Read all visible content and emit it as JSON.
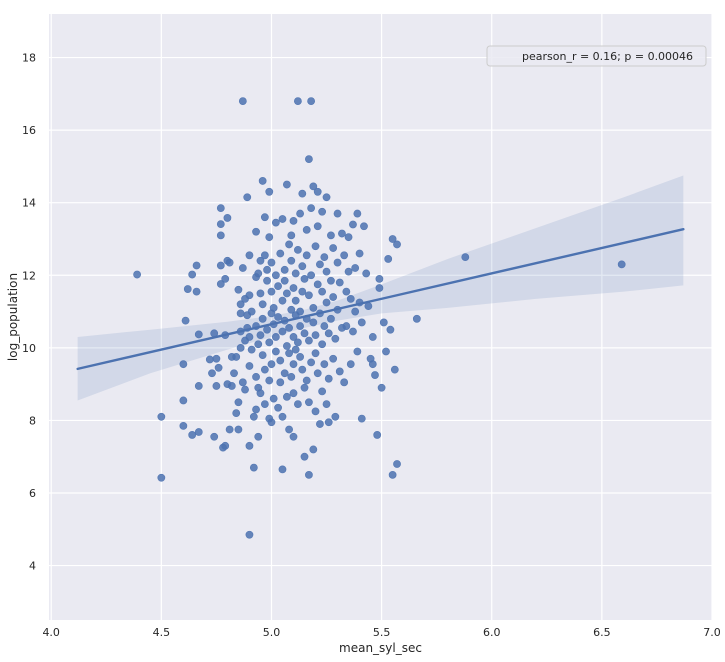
{
  "chart_data": {
    "type": "scatter",
    "title": "",
    "xlabel": "mean_syl_sec",
    "ylabel": "log_population",
    "xlim": [
      3.99,
      7.0
    ],
    "ylim": [
      2.5,
      19.2
    ],
    "xticks": [
      4.0,
      4.5,
      5.0,
      5.5,
      6.0,
      6.5,
      7.0
    ],
    "xtick_labels": [
      "4.0",
      "4.5",
      "5.0",
      "5.5",
      "6.0",
      "6.5",
      "7.0"
    ],
    "yticks": [
      4,
      6,
      8,
      10,
      12,
      14,
      16,
      18
    ],
    "ytick_labels": [
      "4",
      "6",
      "8",
      "10",
      "12",
      "14",
      "16",
      "18"
    ],
    "grid": true,
    "background": "#eaeaf2",
    "colors": {
      "points": "#4c72b0",
      "line": "#4c72b0",
      "band": "#4c72b0"
    },
    "legend": {
      "placement": "top-right",
      "entries": [
        "pearson_r = 0.16; p = 0.00046"
      ]
    },
    "regression": {
      "x": [
        4.12,
        6.87
      ],
      "y": [
        9.42,
        13.27
      ],
      "ci_upper": [
        [
          4.12,
          10.3
        ],
        [
          4.45,
          10.5
        ],
        [
          4.8,
          10.72
        ],
        [
          5.0,
          10.88
        ],
        [
          5.15,
          11.05
        ],
        [
          5.3,
          11.3
        ],
        [
          5.5,
          11.75
        ],
        [
          5.8,
          12.45
        ],
        [
          6.2,
          13.3
        ],
        [
          6.6,
          14.15
        ],
        [
          6.87,
          14.75
        ]
      ],
      "ci_lower": [
        [
          4.12,
          8.55
        ],
        [
          4.45,
          9.3
        ],
        [
          4.8,
          9.95
        ],
        [
          5.0,
          10.3
        ],
        [
          5.15,
          10.55
        ],
        [
          5.3,
          10.75
        ],
        [
          5.5,
          10.95
        ],
        [
          5.8,
          11.1
        ],
        [
          6.2,
          11.35
        ],
        [
          6.6,
          11.55
        ],
        [
          6.87,
          11.72
        ]
      ]
    },
    "points": [
      [
        4.39,
        12.02
      ],
      [
        4.5,
        6.42
      ],
      [
        4.5,
        8.1
      ],
      [
        4.6,
        7.85
      ],
      [
        4.6,
        8.55
      ],
      [
        4.6,
        9.55
      ],
      [
        4.61,
        10.75
      ],
      [
        4.62,
        11.62
      ],
      [
        4.64,
        12.02
      ],
      [
        4.64,
        7.6
      ],
      [
        4.66,
        11.55
      ],
      [
        4.66,
        12.27
      ],
      [
        4.67,
        7.68
      ],
      [
        4.67,
        8.95
      ],
      [
        4.67,
        10.37
      ],
      [
        4.72,
        9.68
      ],
      [
        4.73,
        9.3
      ],
      [
        4.74,
        10.4
      ],
      [
        4.74,
        7.55
      ],
      [
        4.75,
        8.95
      ],
      [
        4.75,
        9.7
      ],
      [
        4.76,
        9.45
      ],
      [
        4.77,
        11.76
      ],
      [
        4.77,
        13.1
      ],
      [
        4.77,
        13.41
      ],
      [
        4.77,
        13.85
      ],
      [
        4.77,
        12.27
      ],
      [
        4.78,
        7.25
      ],
      [
        4.79,
        10.35
      ],
      [
        4.79,
        11.9
      ],
      [
        4.79,
        7.3
      ],
      [
        4.8,
        9.0
      ],
      [
        4.8,
        12.4
      ],
      [
        4.8,
        13.58
      ],
      [
        4.81,
        12.35
      ],
      [
        4.81,
        7.75
      ],
      [
        4.82,
        8.95
      ],
      [
        4.82,
        9.75
      ],
      [
        4.83,
        9.3
      ],
      [
        4.84,
        8.2
      ],
      [
        4.84,
        9.75
      ],
      [
        4.85,
        11.6
      ],
      [
        4.85,
        8.5
      ],
      [
        4.85,
        7.75
      ],
      [
        4.86,
        10.0
      ],
      [
        4.86,
        11.2
      ],
      [
        4.86,
        10.45
      ],
      [
        4.86,
        10.95
      ],
      [
        4.87,
        16.8
      ],
      [
        4.87,
        12.2
      ],
      [
        4.87,
        9.05
      ],
      [
        4.88,
        10.2
      ],
      [
        4.88,
        8.85
      ],
      [
        4.88,
        11.35
      ],
      [
        4.89,
        10.55
      ],
      [
        4.89,
        14.15
      ],
      [
        4.89,
        10.9
      ],
      [
        4.9,
        12.55
      ],
      [
        4.9,
        9.5
      ],
      [
        4.9,
        7.3
      ],
      [
        4.9,
        11.45
      ],
      [
        4.9,
        10.3
      ],
      [
        4.9,
        4.85
      ],
      [
        4.91,
        11.0
      ],
      [
        4.91,
        9.95
      ],
      [
        4.92,
        6.7
      ],
      [
        4.92,
        8.1
      ],
      [
        4.93,
        11.95
      ],
      [
        4.93,
        9.2
      ],
      [
        4.93,
        10.6
      ],
      [
        4.93,
        8.3
      ],
      [
        4.93,
        13.2
      ],
      [
        4.94,
        12.05
      ],
      [
        4.94,
        10.1
      ],
      [
        4.94,
        8.9
      ],
      [
        4.94,
        7.55
      ],
      [
        4.95,
        8.75
      ],
      [
        4.95,
        11.5
      ],
      [
        4.95,
        10.35
      ],
      [
        4.95,
        12.4
      ],
      [
        4.96,
        14.6
      ],
      [
        4.96,
        9.8
      ],
      [
        4.96,
        11.2
      ],
      [
        4.96,
        10.8
      ],
      [
        4.97,
        12.55
      ],
      [
        4.97,
        13.6
      ],
      [
        4.97,
        9.4
      ],
      [
        4.97,
        8.45
      ],
      [
        4.98,
        10.5
      ],
      [
        4.98,
        11.85
      ],
      [
        4.98,
        12.15
      ],
      [
        4.99,
        10.15
      ],
      [
        4.99,
        9.1
      ],
      [
        4.99,
        13.05
      ],
      [
        4.99,
        8.05
      ],
      [
        4.99,
        14.3
      ],
      [
        5.0,
        11.55
      ],
      [
        5.0,
        10.95
      ],
      [
        5.0,
        12.35
      ],
      [
        5.0,
        7.95
      ],
      [
        5.0,
        9.55
      ],
      [
        5.01,
        10.65
      ],
      [
        5.01,
        11.1
      ],
      [
        5.01,
        8.6
      ],
      [
        5.02,
        9.9
      ],
      [
        5.02,
        13.45
      ],
      [
        5.02,
        12.0
      ],
      [
        5.02,
        10.3
      ],
      [
        5.03,
        11.7
      ],
      [
        5.03,
        8.35
      ],
      [
        5.03,
        10.85
      ],
      [
        5.04,
        9.05
      ],
      [
        5.04,
        12.6
      ],
      [
        5.04,
        9.65
      ],
      [
        5.05,
        11.3
      ],
      [
        5.05,
        10.45
      ],
      [
        5.05,
        13.55
      ],
      [
        5.05,
        8.1
      ],
      [
        5.05,
        6.65
      ],
      [
        5.06,
        12.15
      ],
      [
        5.06,
        10.75
      ],
      [
        5.06,
        9.3
      ],
      [
        5.06,
        11.85
      ],
      [
        5.07,
        14.5
      ],
      [
        5.07,
        10.05
      ],
      [
        5.07,
        8.65
      ],
      [
        5.07,
        11.5
      ],
      [
        5.08,
        12.85
      ],
      [
        5.08,
        9.85
      ],
      [
        5.08,
        10.55
      ],
      [
        5.08,
        7.75
      ],
      [
        5.09,
        11.05
      ],
      [
        5.09,
        13.1
      ],
      [
        5.09,
        9.2
      ],
      [
        5.09,
        12.4
      ],
      [
        5.1,
        10.3
      ],
      [
        5.1,
        11.65
      ],
      [
        5.1,
        8.75
      ],
      [
        5.1,
        7.55
      ],
      [
        5.1,
        13.5
      ],
      [
        5.1,
        9.55
      ],
      [
        5.11,
        10.9
      ],
      [
        5.11,
        12.05
      ],
      [
        5.11,
        9.95
      ],
      [
        5.11,
        11.3
      ],
      [
        5.12,
        10.15
      ],
      [
        5.12,
        12.7
      ],
      [
        5.12,
        8.45
      ],
      [
        5.12,
        16.8
      ],
      [
        5.13,
        9.75
      ],
      [
        5.13,
        11.0
      ],
      [
        5.13,
        13.7
      ],
      [
        5.13,
        10.6
      ],
      [
        5.14,
        9.4
      ],
      [
        5.14,
        12.25
      ],
      [
        5.14,
        11.55
      ],
      [
        5.14,
        14.25
      ],
      [
        5.15,
        8.9
      ],
      [
        5.15,
        10.4
      ],
      [
        5.15,
        7.0
      ],
      [
        5.15,
        11.9
      ],
      [
        5.16,
        9.1
      ],
      [
        5.16,
        12.55
      ],
      [
        5.16,
        10.8
      ],
      [
        5.16,
        13.25
      ],
      [
        5.17,
        15.2
      ],
      [
        5.17,
        10.2
      ],
      [
        5.17,
        8.5
      ],
      [
        5.17,
        11.45
      ],
      [
        5.17,
        6.5
      ],
      [
        5.18,
        16.8
      ],
      [
        5.18,
        12.0
      ],
      [
        5.18,
        9.6
      ],
      [
        5.18,
        13.85
      ],
      [
        5.19,
        10.7
      ],
      [
        5.19,
        14.45
      ],
      [
        5.19,
        11.1
      ],
      [
        5.19,
        7.2
      ],
      [
        5.2,
        9.85
      ],
      [
        5.2,
        12.8
      ],
      [
        5.2,
        10.35
      ],
      [
        5.2,
        8.25
      ],
      [
        5.21,
        11.75
      ],
      [
        5.21,
        13.35
      ],
      [
        5.21,
        9.3
      ],
      [
        5.21,
        14.3
      ],
      [
        5.22,
        10.95
      ],
      [
        5.22,
        12.3
      ],
      [
        5.22,
        7.9
      ],
      [
        5.23,
        10.1
      ],
      [
        5.23,
        11.55
      ],
      [
        5.23,
        8.8
      ],
      [
        5.23,
        13.75
      ],
      [
        5.24,
        12.5
      ],
      [
        5.24,
        9.55
      ],
      [
        5.24,
        10.6
      ],
      [
        5.25,
        11.25
      ],
      [
        5.25,
        14.15
      ],
      [
        5.25,
        8.45
      ],
      [
        5.25,
        12.1
      ],
      [
        5.26,
        10.4
      ],
      [
        5.26,
        9.15
      ],
      [
        5.26,
        7.95
      ],
      [
        5.27,
        11.85
      ],
      [
        5.27,
        13.1
      ],
      [
        5.27,
        10.8
      ],
      [
        5.28,
        12.75
      ],
      [
        5.28,
        9.7
      ],
      [
        5.28,
        11.4
      ],
      [
        5.29,
        8.1
      ],
      [
        5.29,
        10.25
      ],
      [
        5.3,
        12.35
      ],
      [
        5.3,
        13.7
      ],
      [
        5.3,
        11.05
      ],
      [
        5.31,
        9.35
      ],
      [
        5.31,
        11.8
      ],
      [
        5.32,
        10.55
      ],
      [
        5.32,
        13.15
      ],
      [
        5.33,
        9.05
      ],
      [
        5.33,
        12.55
      ],
      [
        5.34,
        11.55
      ],
      [
        5.34,
        10.6
      ],
      [
        5.35,
        12.1
      ],
      [
        5.35,
        13.05
      ],
      [
        5.36,
        9.55
      ],
      [
        5.36,
        11.35
      ],
      [
        5.37,
        10.45
      ],
      [
        5.37,
        13.4
      ],
      [
        5.38,
        12.2
      ],
      [
        5.38,
        11.0
      ],
      [
        5.39,
        9.9
      ],
      [
        5.39,
        13.7
      ],
      [
        5.4,
        11.25
      ],
      [
        5.4,
        12.6
      ],
      [
        5.41,
        8.05
      ],
      [
        5.41,
        10.7
      ],
      [
        5.42,
        13.35
      ],
      [
        5.43,
        12.05
      ],
      [
        5.44,
        11.15
      ],
      [
        5.45,
        9.7
      ],
      [
        5.46,
        9.55
      ],
      [
        5.46,
        10.3
      ],
      [
        5.47,
        9.25
      ],
      [
        5.48,
        7.6
      ],
      [
        5.49,
        11.9
      ],
      [
        5.49,
        11.65
      ],
      [
        5.5,
        8.9
      ],
      [
        5.51,
        10.7
      ],
      [
        5.52,
        9.9
      ],
      [
        5.53,
        12.45
      ],
      [
        5.54,
        10.5
      ],
      [
        5.55,
        13.0
      ],
      [
        5.55,
        6.5
      ],
      [
        5.56,
        9.4
      ],
      [
        5.57,
        12.85
      ],
      [
        5.57,
        6.8
      ],
      [
        5.66,
        10.8
      ],
      [
        5.88,
        12.5
      ],
      [
        6.59,
        12.3
      ]
    ]
  }
}
